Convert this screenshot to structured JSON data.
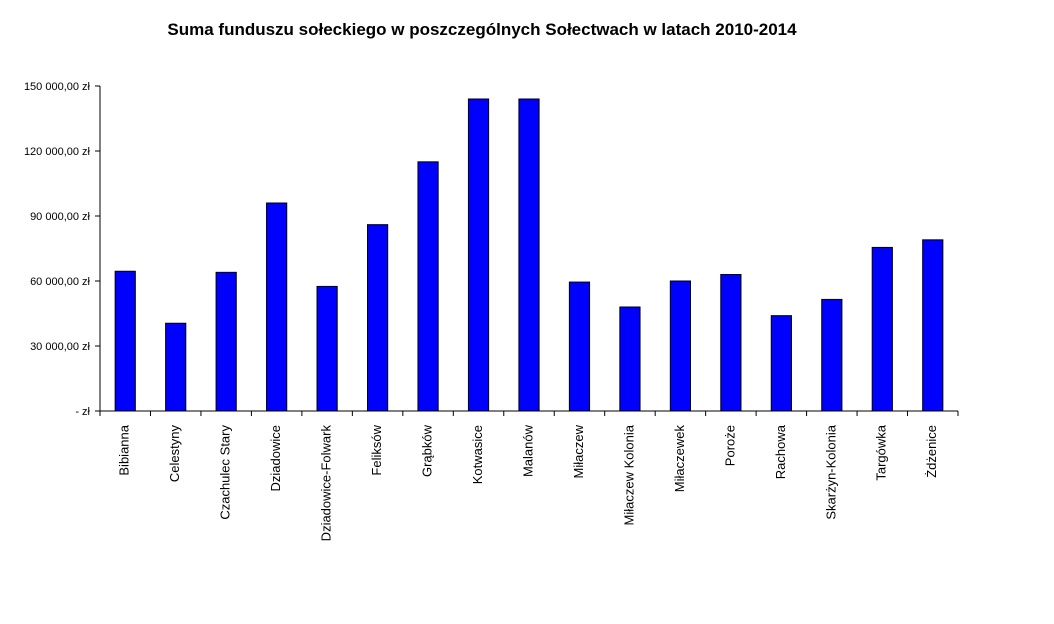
{
  "chart_data": {
    "type": "bar",
    "title": "Suma funduszu sołeckiego w poszczególnych Sołectwach w latach 2010-2014",
    "xlabel": "",
    "ylabel": "",
    "categories": [
      "Bibianna",
      "Celestyny",
      "Czachulec Stary",
      "Dziadowice",
      "Dziadowice-Folwark",
      "Feliksów",
      "Grąbków",
      "Kotwasice",
      "Malanów",
      "Miłaczew",
      "Miłaczew Kolonia",
      "Miłaczewek",
      "Poroże",
      "Rachowa",
      "Skarżyn-Kolonia",
      "Targówka",
      "Żdżenice"
    ],
    "values": [
      64500,
      40500,
      64000,
      96000,
      57500,
      86000,
      115000,
      144000,
      144000,
      59500,
      48000,
      60000,
      63000,
      44000,
      51500,
      75500,
      79000
    ],
    "ylim": [
      0,
      150000
    ],
    "yticks": [
      0,
      30000,
      60000,
      90000,
      120000,
      150000
    ],
    "ytick_labels": [
      "-  zł",
      "30 000,00 zł",
      "60 000,00 zł",
      "90 000,00 zł",
      "120 000,00 zł",
      "150 000,00 zł"
    ],
    "grid": false,
    "legend": "none",
    "bar_color": "#0000ff",
    "bar_edge_color": "#000000"
  }
}
